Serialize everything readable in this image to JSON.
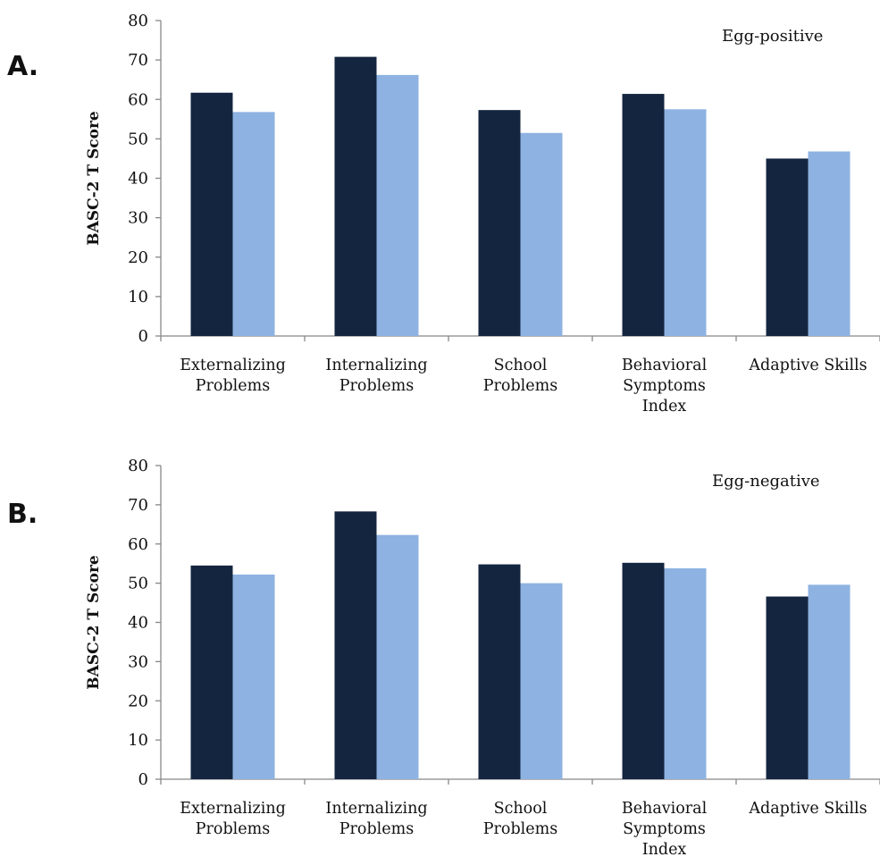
{
  "chart_data": [
    {
      "panel_label": "A.",
      "type": "bar",
      "annotation": "Egg-positive",
      "ylabel": "BASC-2 T Score",
      "ylim": [
        0,
        80
      ],
      "yticks": [
        0,
        10,
        20,
        30,
        40,
        50,
        60,
        70,
        80
      ],
      "grid": false,
      "categories": [
        [
          "Externalizing",
          "Problems"
        ],
        [
          "Internalizing",
          "Problems"
        ],
        [
          "School",
          "Problems"
        ],
        [
          "Behavioral",
          "Symptoms",
          "Index"
        ],
        [
          "Adaptive Skills"
        ]
      ],
      "series": [
        {
          "color": "#14253f",
          "values": [
            61.7,
            70.8,
            57.3,
            61.4,
            45.0
          ]
        },
        {
          "color": "#8eb3e2",
          "values": [
            56.8,
            66.2,
            51.5,
            57.5,
            46.8
          ]
        }
      ]
    },
    {
      "panel_label": "B.",
      "type": "bar",
      "annotation": "Egg-negative",
      "ylabel": "BASC-2 T Score",
      "ylim": [
        0,
        80
      ],
      "yticks": [
        0,
        10,
        20,
        30,
        40,
        50,
        60,
        70,
        80
      ],
      "grid": false,
      "categories": [
        [
          "Externalizing",
          "Problems"
        ],
        [
          "Internalizing",
          "Problems"
        ],
        [
          "School",
          "Problems"
        ],
        [
          "Behavioral",
          "Symptoms",
          "Index"
        ],
        [
          "Adaptive Skills"
        ]
      ],
      "series": [
        {
          "color": "#14253f",
          "values": [
            54.5,
            68.3,
            54.8,
            55.2,
            46.6
          ]
        },
        {
          "color": "#8eb3e2",
          "values": [
            52.2,
            62.3,
            50.0,
            53.8,
            49.6
          ]
        }
      ]
    }
  ]
}
